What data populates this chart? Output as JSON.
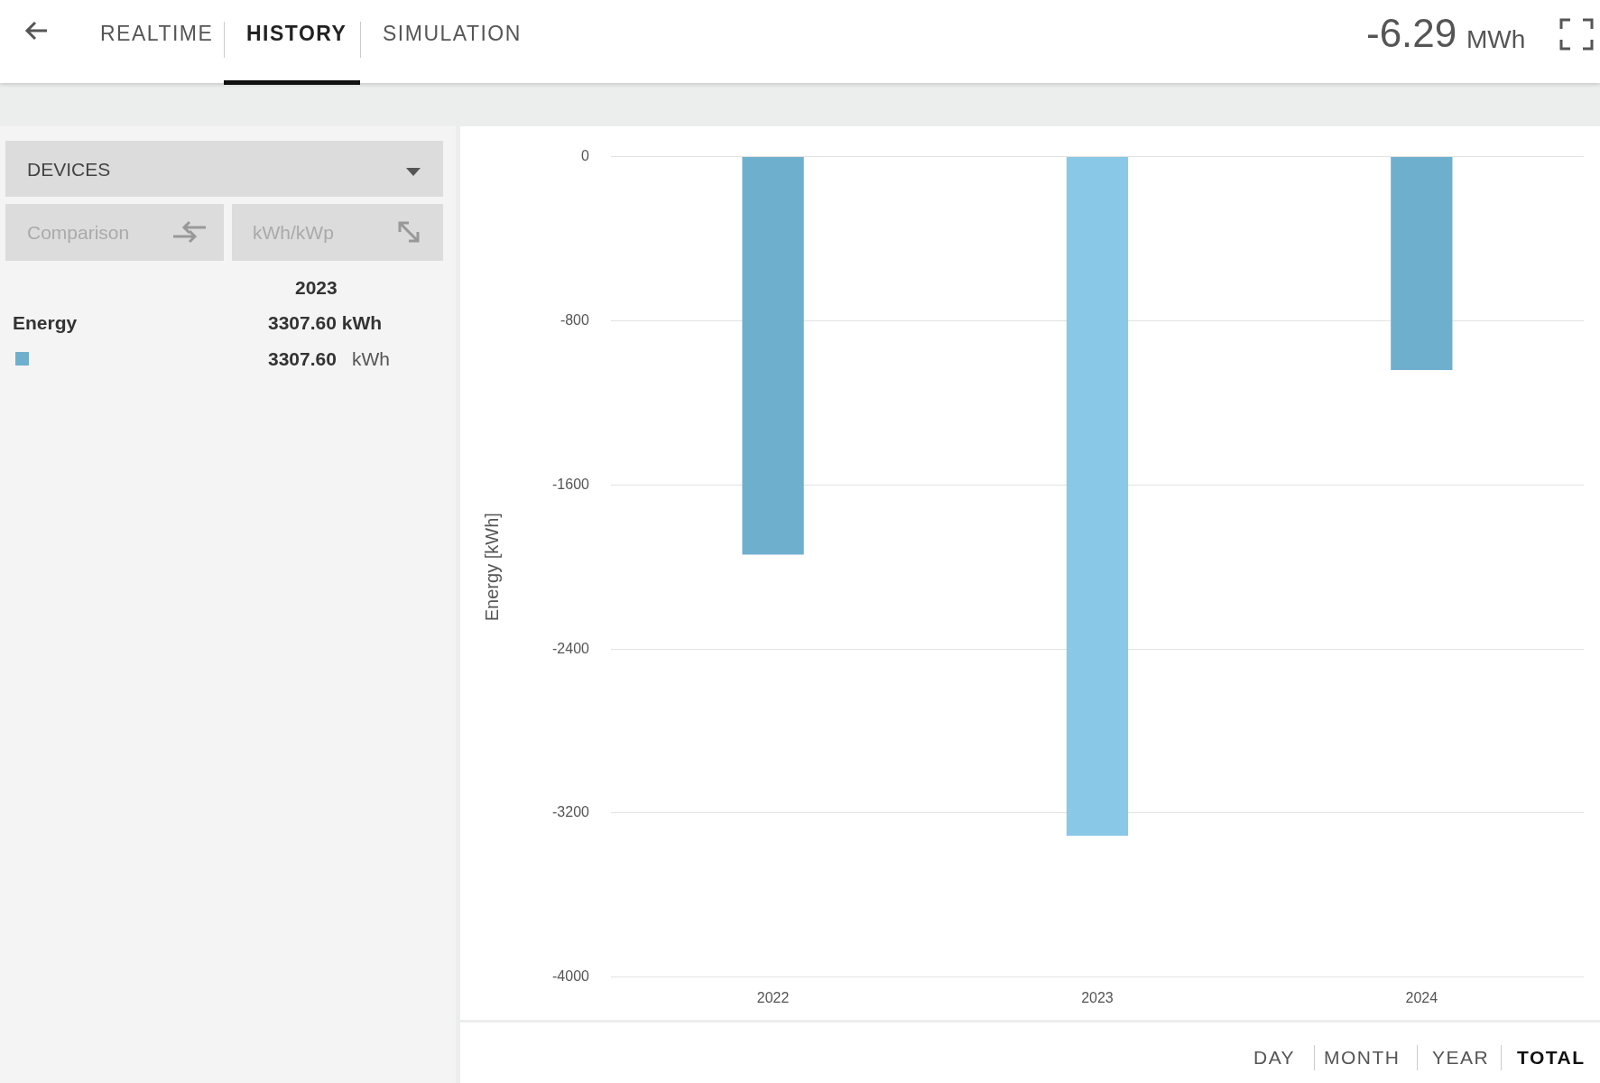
{
  "chart_data": {
    "type": "bar",
    "ylabel": "Energy [kWh]",
    "categories": [
      "2022",
      "2023",
      "2024"
    ],
    "values": [
      -1940,
      -3310,
      -1040
    ],
    "colors": [
      "#6fafce",
      "#89c8e6",
      "#6fafce"
    ],
    "ylim": [
      -4000,
      0
    ],
    "yticks": [
      -4000,
      -3200,
      -2400,
      -1600,
      -800,
      0
    ],
    "grid": "y",
    "legend": false,
    "annotations": [
      "REALTIME",
      "HISTORY",
      "SIMULATION",
      "-6.29",
      "MWh",
      "DEVICES",
      "Comparison",
      "kWh/kWp",
      "2023",
      "Energy",
      "3307.60  kWh",
      "3307.60",
      "kWh",
      "DAY",
      "MONTH",
      "YEAR",
      "TOTAL"
    ]
  }
}
